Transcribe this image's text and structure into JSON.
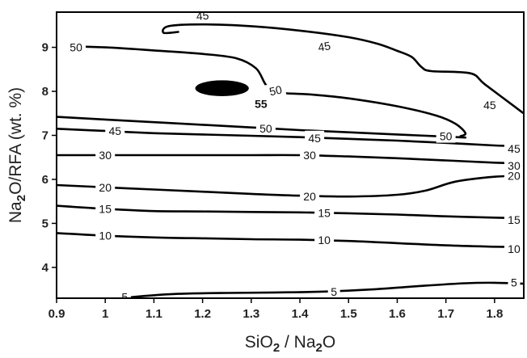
{
  "chart_data": {
    "type": "contour",
    "title": "",
    "x_axis": {
      "label_main": "SiO",
      "label_sub1": "2",
      "label_mid": " / Na",
      "label_sub2": "2",
      "label_end": "O",
      "range": [
        0.9,
        1.86
      ],
      "ticks": [
        "0.9",
        "1",
        "1.1",
        "1.2",
        "1.3",
        "1.4",
        "1.5",
        "1.6",
        "1.7",
        "1.8"
      ]
    },
    "y_axis": {
      "label_main": "Na",
      "label_sub": "2",
      "label_end": "O/RFA (wt. %)",
      "range": [
        3.3,
        9.8
      ],
      "ticks": [
        "4",
        "5",
        "6",
        "7",
        "8",
        "9"
      ]
    },
    "contours": [
      {
        "level": 5,
        "points": [
          [
            1.02,
            3.28
          ],
          [
            1.07,
            3.34
          ],
          [
            1.15,
            3.4
          ],
          [
            1.25,
            3.42
          ],
          [
            1.35,
            3.43
          ],
          [
            1.45,
            3.45
          ],
          [
            1.55,
            3.5
          ],
          [
            1.65,
            3.58
          ],
          [
            1.74,
            3.64
          ],
          [
            1.8,
            3.65
          ],
          [
            1.86,
            3.63
          ]
        ],
        "labels": [
          {
            "text": "5",
            "x": 1.04,
            "y": 3.33,
            "angle": 0
          },
          {
            "text": "5",
            "x": 1.47,
            "y": 3.45,
            "angle": 0
          },
          {
            "text": "5",
            "x": 1.84,
            "y": 3.66,
            "angle": 0
          }
        ]
      },
      {
        "level": 10,
        "points": [
          [
            0.9,
            4.78
          ],
          [
            1.0,
            4.72
          ],
          [
            1.1,
            4.68
          ],
          [
            1.2,
            4.66
          ],
          [
            1.3,
            4.64
          ],
          [
            1.4,
            4.63
          ],
          [
            1.5,
            4.6
          ],
          [
            1.6,
            4.55
          ],
          [
            1.7,
            4.5
          ],
          [
            1.8,
            4.47
          ],
          [
            1.86,
            4.46
          ]
        ],
        "labels": [
          {
            "text": "10",
            "x": 1.0,
            "y": 4.72,
            "angle": 0
          },
          {
            "text": "10",
            "x": 1.45,
            "y": 4.62,
            "angle": 0
          },
          {
            "text": "10",
            "x": 1.84,
            "y": 4.42,
            "angle": 0
          }
        ]
      },
      {
        "level": 15,
        "points": [
          [
            0.9,
            5.4
          ],
          [
            1.0,
            5.33
          ],
          [
            1.1,
            5.28
          ],
          [
            1.2,
            5.27
          ],
          [
            1.3,
            5.26
          ],
          [
            1.4,
            5.25
          ],
          [
            1.5,
            5.23
          ],
          [
            1.6,
            5.2
          ],
          [
            1.7,
            5.16
          ],
          [
            1.8,
            5.13
          ],
          [
            1.86,
            5.12
          ]
        ],
        "labels": [
          {
            "text": "15",
            "x": 1.0,
            "y": 5.33,
            "angle": 0
          },
          {
            "text": "15",
            "x": 1.45,
            "y": 5.24,
            "angle": 0
          },
          {
            "text": "15",
            "x": 1.84,
            "y": 5.08,
            "angle": 0
          }
        ]
      },
      {
        "level": 20,
        "points": [
          [
            0.9,
            5.87
          ],
          [
            1.0,
            5.82
          ],
          [
            1.1,
            5.77
          ],
          [
            1.2,
            5.72
          ],
          [
            1.3,
            5.67
          ],
          [
            1.4,
            5.63
          ],
          [
            1.5,
            5.61
          ],
          [
            1.6,
            5.65
          ],
          [
            1.66,
            5.75
          ],
          [
            1.72,
            5.95
          ],
          [
            1.8,
            6.06
          ],
          [
            1.86,
            6.08
          ]
        ],
        "labels": [
          {
            "text": "20",
            "x": 1.0,
            "y": 5.82,
            "angle": 0
          },
          {
            "text": "20",
            "x": 1.42,
            "y": 5.61,
            "angle": 0
          },
          {
            "text": "20",
            "x": 1.84,
            "y": 6.08,
            "angle": 0
          }
        ]
      },
      {
        "level": 30,
        "points": [
          [
            0.9,
            6.55
          ],
          [
            1.0,
            6.55
          ],
          [
            1.1,
            6.55
          ],
          [
            1.2,
            6.55
          ],
          [
            1.3,
            6.55
          ],
          [
            1.4,
            6.55
          ],
          [
            1.5,
            6.52
          ],
          [
            1.6,
            6.48
          ],
          [
            1.7,
            6.43
          ],
          [
            1.8,
            6.38
          ],
          [
            1.86,
            6.36
          ]
        ],
        "labels": [
          {
            "text": "30",
            "x": 1.0,
            "y": 6.55,
            "angle": 0
          },
          {
            "text": "30",
            "x": 1.42,
            "y": 6.55,
            "angle": 0
          },
          {
            "text": "30",
            "x": 1.84,
            "y": 6.31,
            "angle": 0
          }
        ]
      },
      {
        "level": 45,
        "points": [
          [
            0.9,
            7.15
          ],
          [
            1.0,
            7.1
          ],
          [
            1.1,
            7.05
          ],
          [
            1.2,
            7.02
          ],
          [
            1.3,
            6.99
          ],
          [
            1.4,
            6.96
          ],
          [
            1.5,
            6.92
          ],
          [
            1.6,
            6.88
          ],
          [
            1.7,
            6.83
          ],
          [
            1.8,
            6.77
          ],
          [
            1.86,
            6.75
          ]
        ],
        "labels": [
          {
            "text": "45",
            "x": 1.02,
            "y": 7.1,
            "angle": 0
          },
          {
            "text": "45",
            "x": 1.43,
            "y": 6.94,
            "angle": 0
          },
          {
            "text": "45",
            "x": 1.84,
            "y": 6.7,
            "angle": 0
          }
        ]
      },
      {
        "level": 50,
        "points": [
          [
            0.9,
            7.42
          ],
          [
            1.0,
            7.36
          ],
          [
            1.1,
            7.3
          ],
          [
            1.2,
            7.24
          ],
          [
            1.3,
            7.18
          ],
          [
            1.4,
            7.12
          ],
          [
            1.5,
            7.07
          ],
          [
            1.6,
            7.02
          ],
          [
            1.7,
            6.97
          ],
          [
            1.74,
            6.95
          ]
        ],
        "labels": [
          {
            "text": "50",
            "x": 1.33,
            "y": 7.16,
            "angle": 0
          }
        ]
      },
      {
        "level": 50,
        "points": [
          [
            0.93,
            9.02
          ],
          [
            1.0,
            9.0
          ],
          [
            1.1,
            8.93
          ],
          [
            1.2,
            8.85
          ],
          [
            1.27,
            8.75
          ],
          [
            1.31,
            8.52
          ],
          [
            1.33,
            8.15
          ],
          [
            1.35,
            7.98
          ],
          [
            1.42,
            7.93
          ],
          [
            1.5,
            7.84
          ],
          [
            1.6,
            7.66
          ],
          [
            1.68,
            7.45
          ],
          [
            1.72,
            7.26
          ],
          [
            1.74,
            7.05
          ],
          [
            1.73,
            6.98
          ]
        ],
        "labels": [
          {
            "text": "50",
            "x": 0.94,
            "y": 9.0,
            "angle": 0
          },
          {
            "text": "50",
            "x": 1.35,
            "y": 8.02,
            "angle": -12
          },
          {
            "text": "50",
            "x": 1.7,
            "y": 6.98,
            "angle": 0
          }
        ]
      },
      {
        "level": 45,
        "points": [
          [
            1.15,
            9.35
          ],
          [
            1.12,
            9.33
          ],
          [
            1.13,
            9.48
          ],
          [
            1.2,
            9.52
          ],
          [
            1.3,
            9.48
          ],
          [
            1.4,
            9.38
          ],
          [
            1.5,
            9.23
          ],
          [
            1.56,
            9.08
          ],
          [
            1.6,
            8.92
          ],
          [
            1.63,
            8.78
          ],
          [
            1.65,
            8.55
          ],
          [
            1.67,
            8.46
          ],
          [
            1.75,
            8.41
          ],
          [
            1.78,
            8.16
          ],
          [
            1.85,
            7.58
          ],
          [
            1.86,
            7.5
          ]
        ],
        "labels": [
          {
            "text": "45",
            "x": 1.2,
            "y": 9.72,
            "angle": -5
          },
          {
            "text": "45",
            "x": 1.45,
            "y": 9.02,
            "angle": -10
          },
          {
            "text": "45",
            "x": 1.79,
            "y": 7.69,
            "angle": 0
          }
        ]
      }
    ],
    "peak": {
      "text": "55",
      "x": 1.24,
      "y": 8.07,
      "rx": 0.055,
      "ry": 0.18,
      "label_x": 1.32,
      "label_y": 7.72
    }
  }
}
